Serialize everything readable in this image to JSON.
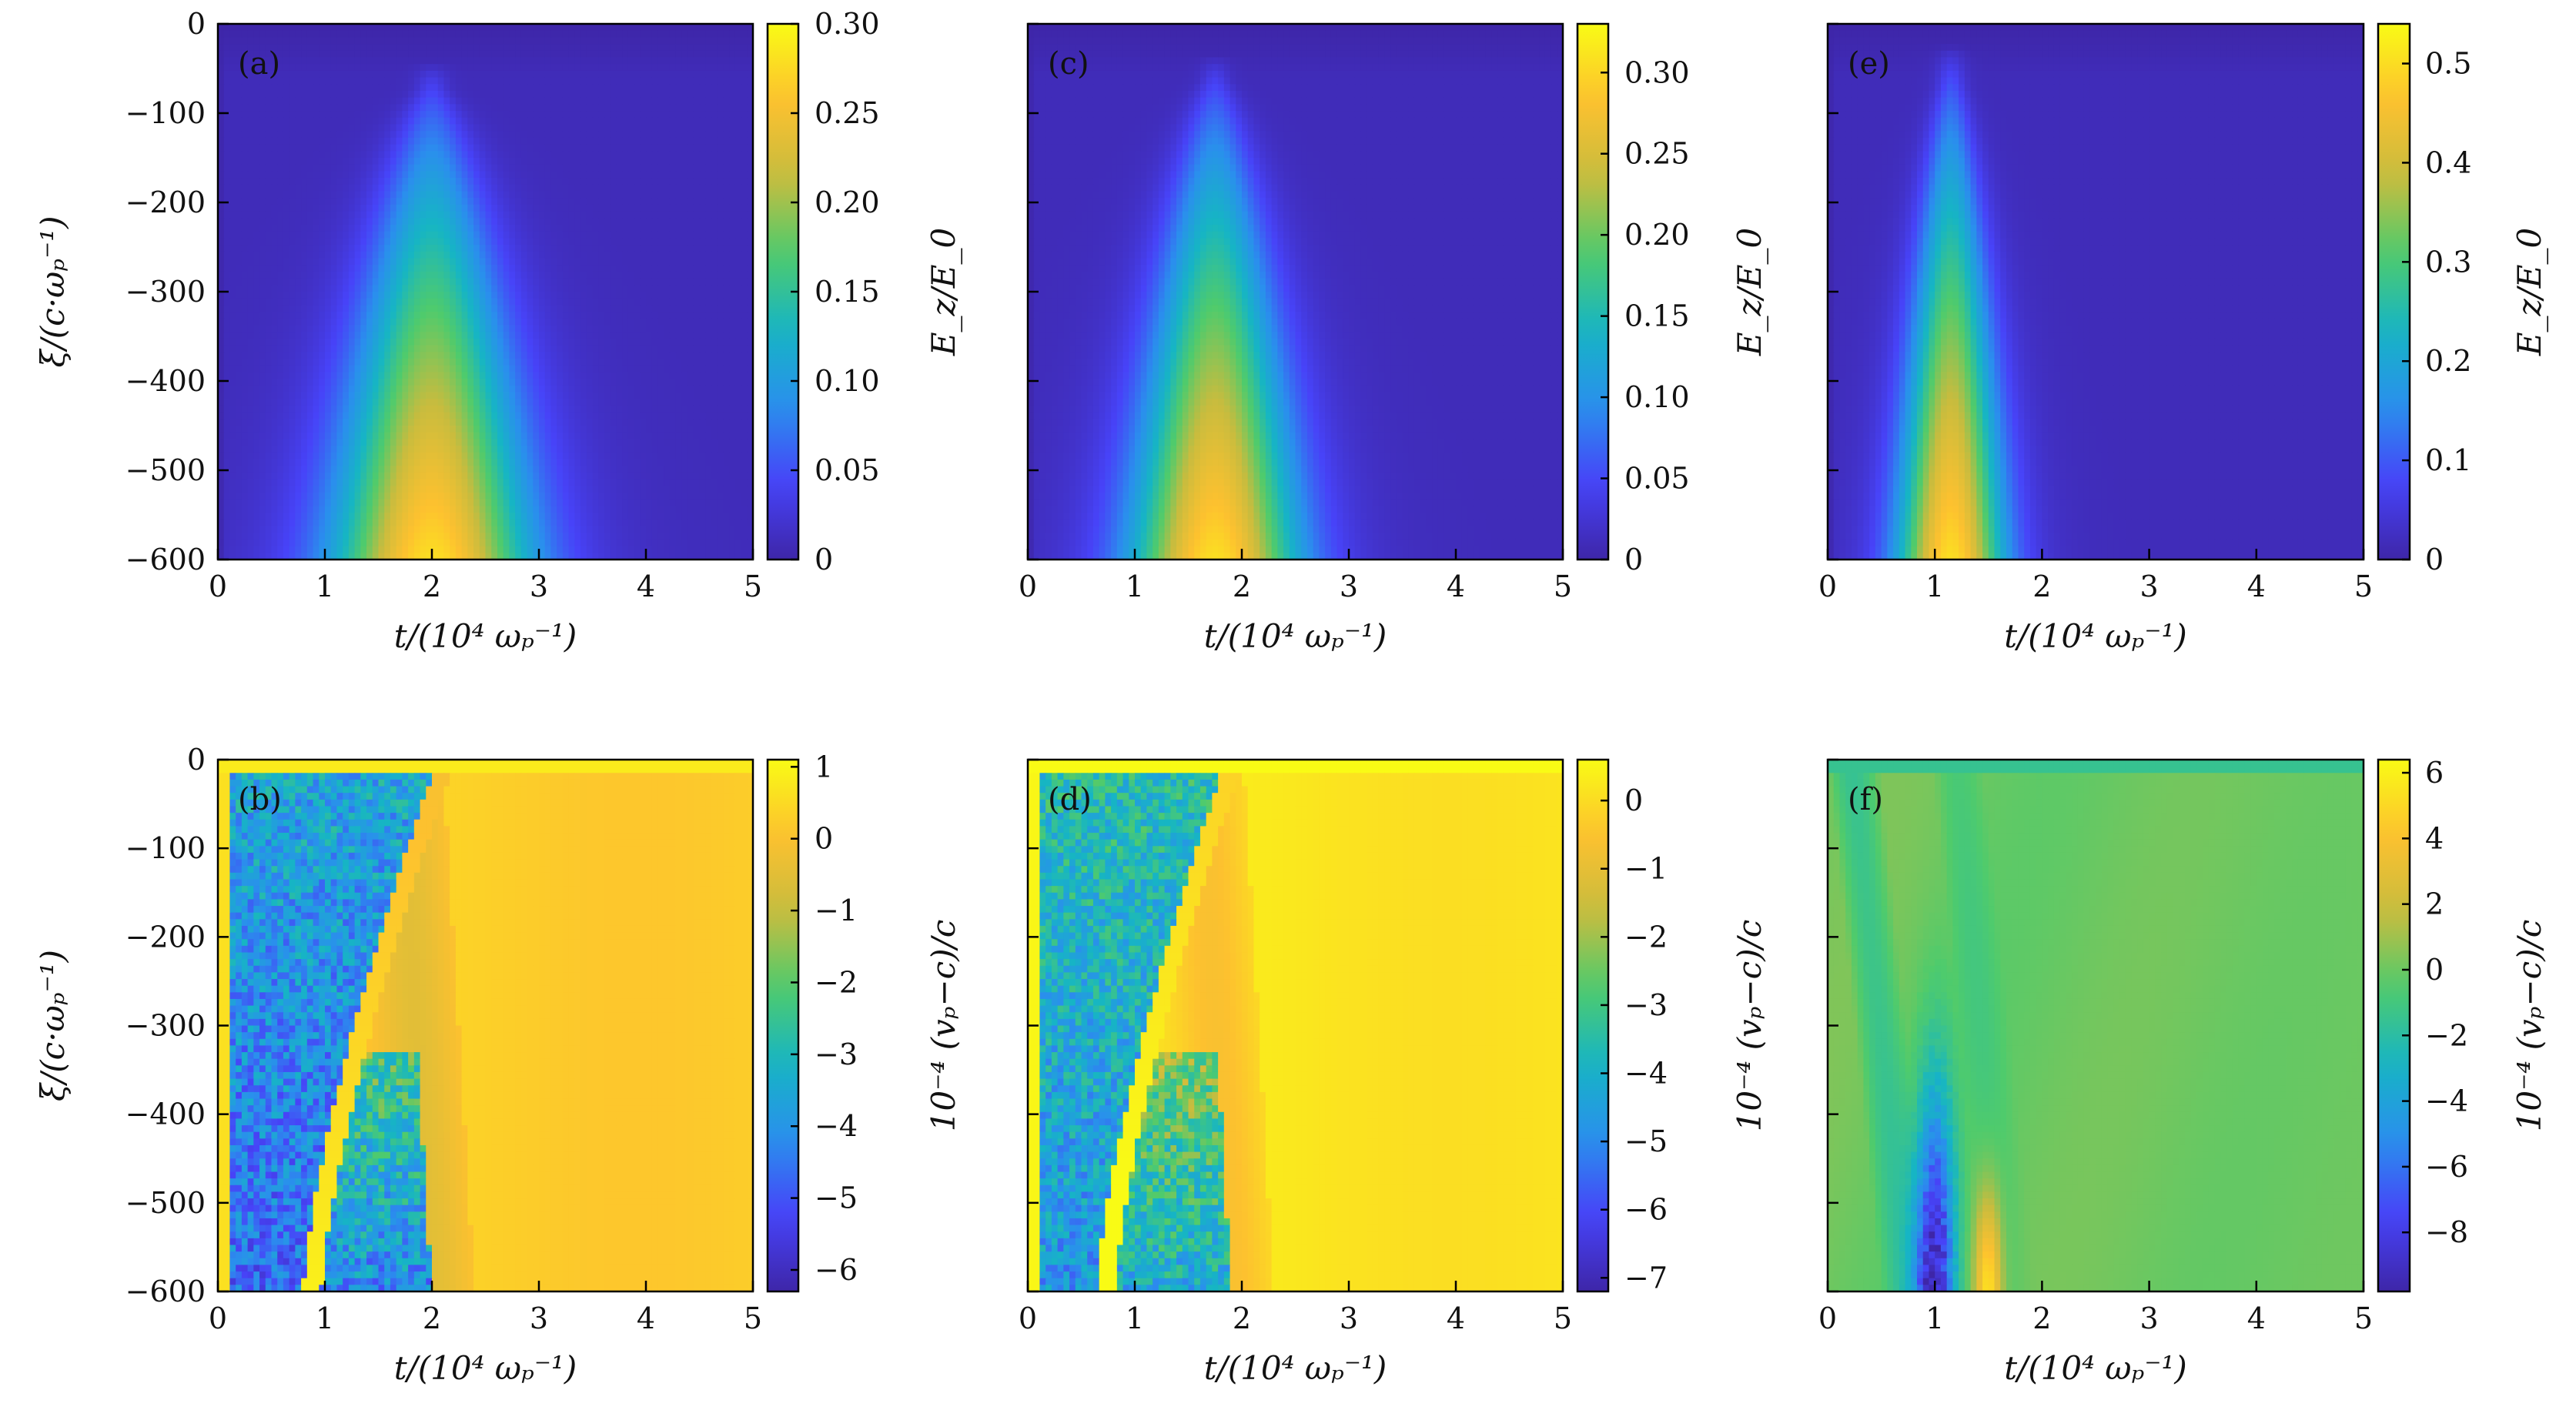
{
  "chart_data": [
    {
      "type": "heatmap",
      "panel_label": "(a)",
      "xlabel": "t/(10⁴ ωₚ⁻¹)",
      "ylabel": "ξ/(c·ωₚ⁻¹)",
      "xlim": [
        0,
        5
      ],
      "ylim": [
        -600,
        0
      ],
      "x_ticks": [
        "0",
        "1",
        "2",
        "3",
        "4",
        "5"
      ],
      "y_ticks": [
        "0",
        "−100",
        "−200",
        "−300",
        "−400",
        "−500",
        "−600"
      ],
      "colorbar_label": "E_z/E_0",
      "colorbar_range": [
        0,
        0.3
      ],
      "colorbar_ticks": [
        "0",
        "0.05",
        "0.10",
        "0.15",
        "0.20",
        "0.25",
        "0.30"
      ],
      "features": {
        "field": "wakefield",
        "peak_t": 2.0,
        "peak_value": 0.3,
        "arch_top_xi": -180,
        "spread": 0.95
      }
    },
    {
      "type": "heatmap",
      "panel_label": "(b)",
      "xlabel": "t/(10⁴ ωₚ⁻¹)",
      "ylabel": "ξ/(c·ωₚ⁻¹)",
      "xlim": [
        0,
        5
      ],
      "ylim": [
        -600,
        0
      ],
      "x_ticks": [
        "0",
        "1",
        "2",
        "3",
        "4",
        "5"
      ],
      "y_ticks": [
        "0",
        "−100",
        "−200",
        "−300",
        "−400",
        "−500",
        "−600"
      ],
      "colorbar_label": "10⁻⁴ (vₚ−c)/c",
      "colorbar_range": [
        -6.3,
        1.1
      ],
      "colorbar_ticks": [
        "1",
        "0",
        "−1",
        "−2",
        "−3",
        "−4",
        "−5",
        "−6"
      ],
      "features": {
        "field": "velocity",
        "stripe_t0": 0.85,
        "stripe_t_top": 2.1,
        "noisy_region_t": 2.0,
        "background": 0.3
      }
    },
    {
      "type": "heatmap",
      "panel_label": "(c)",
      "xlabel": "t/(10⁴ ωₚ⁻¹)",
      "ylabel": "",
      "xlim": [
        0,
        5
      ],
      "ylim": [
        -600,
        0
      ],
      "x_ticks": [
        "0",
        "1",
        "2",
        "3",
        "4",
        "5"
      ],
      "y_ticks": [],
      "colorbar_label": "E_z/E_0",
      "colorbar_range": [
        0,
        0.33
      ],
      "colorbar_ticks": [
        "0",
        "0.05",
        "0.10",
        "0.15",
        "0.20",
        "0.25",
        "0.30"
      ],
      "features": {
        "field": "wakefield",
        "peak_t": 1.75,
        "peak_value": 0.33,
        "arch_top_xi": -150,
        "spread": 0.8
      }
    },
    {
      "type": "heatmap",
      "panel_label": "(d)",
      "xlabel": "t/(10⁴ ωₚ⁻¹)",
      "ylabel": "",
      "xlim": [
        0,
        5
      ],
      "ylim": [
        -600,
        0
      ],
      "x_ticks": [
        "0",
        "1",
        "2",
        "3",
        "4",
        "5"
      ],
      "y_ticks": [],
      "colorbar_label": "10⁻⁴ (vₚ−c)/c",
      "colorbar_range": [
        -7.2,
        0.6
      ],
      "colorbar_ticks": [
        "0",
        "−1",
        "−2",
        "−3",
        "−4",
        "−5",
        "−6",
        "−7"
      ],
      "features": {
        "field": "velocity",
        "stripe_t0": 0.7,
        "stripe_t_top": 1.9,
        "noisy_region_t": 1.9,
        "background": 0.2
      }
    },
    {
      "type": "heatmap",
      "panel_label": "(e)",
      "xlabel": "t/(10⁴ ωₚ⁻¹)",
      "ylabel": "",
      "xlim": [
        0,
        5
      ],
      "ylim": [
        -600,
        0
      ],
      "x_ticks": [
        "0",
        "1",
        "2",
        "3",
        "4",
        "5"
      ],
      "y_ticks": [],
      "colorbar_label": "E_z/E_0",
      "colorbar_range": [
        0,
        0.54
      ],
      "colorbar_ticks": [
        "0",
        "0.1",
        "0.2",
        "0.3",
        "0.4",
        "0.5"
      ],
      "features": {
        "field": "wakefield",
        "peak_t": 1.15,
        "peak_value": 0.54,
        "arch_top_xi": -100,
        "spread": 0.5
      }
    },
    {
      "type": "heatmap",
      "panel_label": "(f)",
      "xlabel": "t/(10⁴ ωₚ⁻¹)",
      "ylabel": "",
      "xlim": [
        0,
        5
      ],
      "ylim": [
        -600,
        0
      ],
      "x_ticks": [
        "0",
        "1",
        "2",
        "3",
        "4",
        "5"
      ],
      "y_ticks": [],
      "colorbar_label": "10⁻⁴ (vₚ−c)/c",
      "colorbar_range": [
        -9.8,
        6.4
      ],
      "colorbar_ticks": [
        "6",
        "4",
        "2",
        "0",
        "−2",
        "−4",
        "−6",
        "−8"
      ],
      "features": {
        "field": "velocity_f",
        "background": 0.0,
        "dip_t": 1.0,
        "dip_value": -9.5,
        "spike_t": 1.5,
        "spike_value": 5.5
      }
    }
  ],
  "colormap": [
    "#3e26a8",
    "#4743f8",
    "#2a8fed",
    "#16b5c4",
    "#4fcb6c",
    "#c8bc3e",
    "#fdc12f",
    "#f9fb15"
  ]
}
